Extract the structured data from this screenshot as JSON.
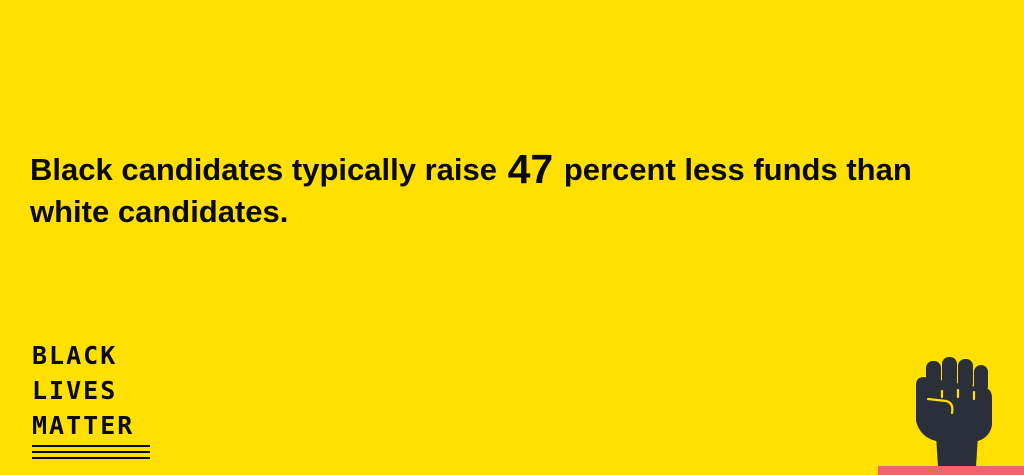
{
  "headline": {
    "before": "Black candidates typically raise ",
    "number": "47",
    "after": " percent less funds than white candidates."
  },
  "logo": {
    "line1": "BLACK",
    "line2": "LIVES",
    "line3": "MATTER"
  },
  "colors": {
    "background": "#FFE000",
    "text": "#0A0A0A",
    "fist": "#2B2F3A",
    "accent_bar": "#F0646A"
  },
  "icons": {
    "fist": "raised-fist-icon"
  }
}
